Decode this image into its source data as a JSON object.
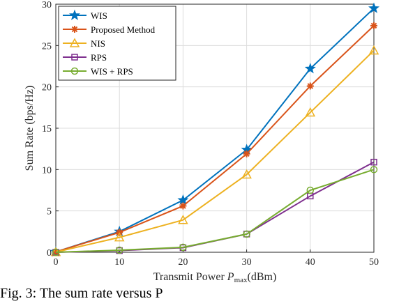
{
  "chart_data": {
    "type": "line",
    "xlabel_prefix": "Transmit Power ",
    "xlabel_var": "P",
    "xlabel_sub": "max",
    "xlabel_suffix": "(dBm)",
    "ylabel": "Sum Rate (bps/Hz)",
    "x": [
      0,
      10,
      20,
      30,
      40,
      50
    ],
    "xlim": [
      0,
      50
    ],
    "ylim": [
      0,
      30
    ],
    "xticks": [
      "0",
      "10",
      "20",
      "30",
      "40",
      "50"
    ],
    "yticks": [
      "0",
      "5",
      "10",
      "15",
      "20",
      "25",
      "30"
    ],
    "grid": true,
    "legend_position": "top-left",
    "series": [
      {
        "name": "WIS",
        "marker": "star",
        "color": "#0072BD",
        "values": [
          0.05,
          2.5,
          6.3,
          12.4,
          22.2,
          29.5
        ]
      },
      {
        "name": "Proposed Method",
        "marker": "asterisk",
        "color": "#D95319",
        "values": [
          0.05,
          2.4,
          5.6,
          11.9,
          20.1,
          27.4
        ]
      },
      {
        "name": "NIS",
        "marker": "triangle",
        "color": "#EDB120",
        "values": [
          0.02,
          1.8,
          3.9,
          9.4,
          16.9,
          24.4
        ]
      },
      {
        "name": "RPS",
        "marker": "square",
        "color": "#7E2F8E",
        "values": [
          0.0,
          0.2,
          0.55,
          2.2,
          6.8,
          10.9
        ]
      },
      {
        "name": "WIS + RPS",
        "marker": "circle",
        "color": "#77AC30",
        "values": [
          0.0,
          0.25,
          0.6,
          2.2,
          7.5,
          10.0
        ]
      }
    ]
  },
  "caption": "Fig. 3: The sum rate versus P"
}
